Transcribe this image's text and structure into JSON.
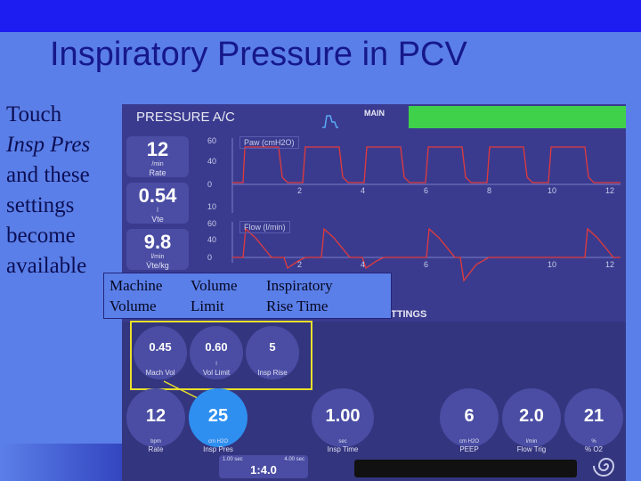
{
  "slide": {
    "title": "Inspiratory Pressure in PCV",
    "caption": [
      "Touch",
      "Insp Pres",
      "and these",
      "settings",
      "become",
      "available"
    ]
  },
  "screen": {
    "mode": "PRESSURE A/C",
    "main_label": "MAIN",
    "settings_tab": "TTINGS",
    "readouts": [
      {
        "value": "12",
        "unit": "/min",
        "name": "Rate"
      },
      {
        "value": "0.54",
        "unit": "l",
        "name": "Vte"
      },
      {
        "value": "9.8",
        "unit": "l/min",
        "name": "V̇te/kg"
      }
    ],
    "waveforms": {
      "pressure": {
        "label": "Paw (cmH2O)",
        "ticks": [
          "60",
          "40",
          "0"
        ],
        "x_ticks": [
          "2",
          "4",
          "6",
          "8",
          "10",
          "12"
        ]
      },
      "flow": {
        "label": "Flow (l/min)",
        "ticks": [
          "10",
          "60",
          "40",
          "0"
        ],
        "x_ticks": [
          "2",
          "4",
          "6",
          "10",
          "12"
        ]
      }
    },
    "additional_settings": [
      {
        "value": "0.45",
        "unit": "",
        "name": "Mach Vol"
      },
      {
        "value": "0.60",
        "unit": "l",
        "name": "Vol Limit"
      },
      {
        "value": "5",
        "unit": "",
        "name": "Insp Rise"
      }
    ],
    "main_settings": [
      {
        "value": "12",
        "unit": "bpm",
        "name": "Rate"
      },
      {
        "value": "25",
        "unit": "cm H2O",
        "name": "Insp Pres"
      },
      {
        "value": "1.00",
        "unit": "sec",
        "name": "Insp Time"
      },
      {
        "value": "6",
        "unit": "cm H2O",
        "name": "PEEP"
      },
      {
        "value": "2.0",
        "unit": "l/min",
        "name": "Flow Trig"
      },
      {
        "value": "21",
        "unit": "%",
        "name": "% O2"
      }
    ],
    "ie_ratio": {
      "left": "1.00 sec",
      "right": "4.00 sec",
      "value": "1:4.0"
    }
  },
  "callout": {
    "col1": [
      "Machine",
      "Volume"
    ],
    "col2": [
      "Volume",
      "Limit"
    ],
    "col3": [
      "Inspiratory",
      "Rise Time"
    ]
  },
  "colors": {
    "background": "#5b7fe8",
    "title": "#16188a",
    "top_bar": "#1d1df2",
    "screen": "#3a3b8f",
    "main_bar": "#3fd14a",
    "pressure_trace": "#5aa9f2",
    "flow_trace": "#e23a3a",
    "selected_knob": "#2e8ff0",
    "highlight": "#e8e02a"
  }
}
